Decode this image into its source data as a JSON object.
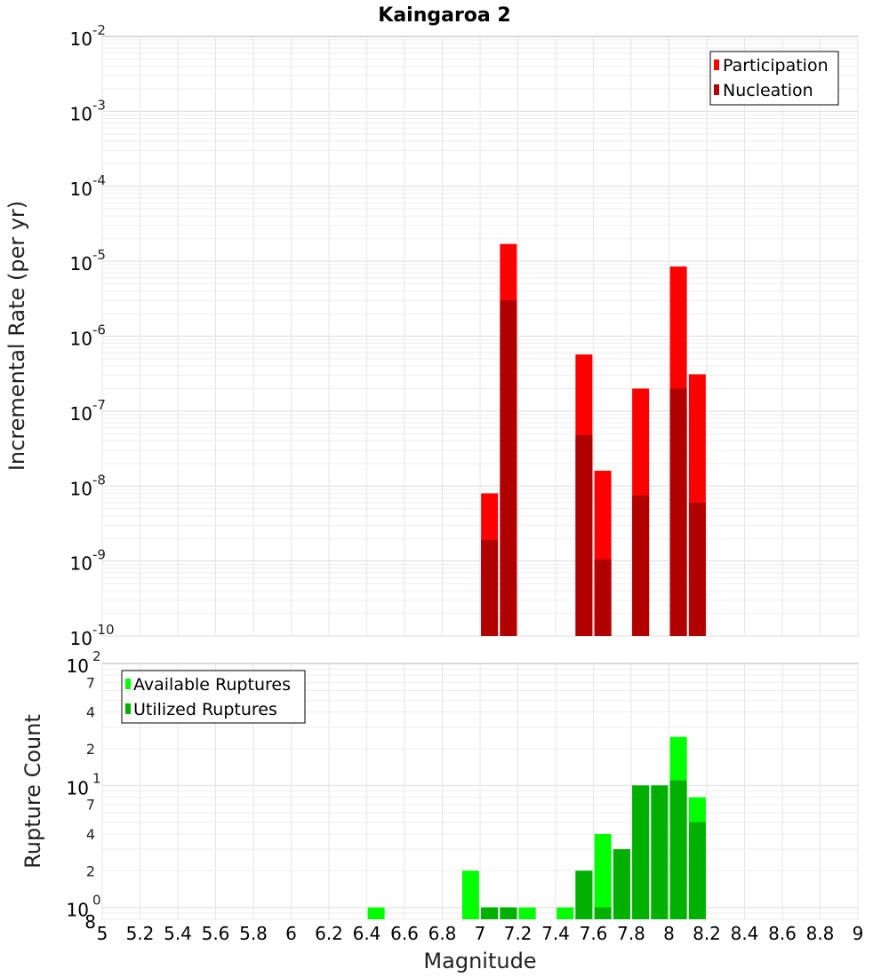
{
  "chart_data": [
    {
      "type": "bar",
      "title": "Kaingaroa 2",
      "ylabel": "Incremental Rate (per yr)",
      "xlabel": "",
      "yscale": "log",
      "ylim": [
        1e-10,
        0.01
      ],
      "xlim": [
        5,
        9
      ],
      "grid": true,
      "legend_position": "top-right",
      "y_ticks": [
        {
          "base": "10",
          "exp": "-2"
        },
        {
          "base": "10",
          "exp": "-3"
        },
        {
          "base": "10",
          "exp": "-4"
        },
        {
          "base": "10",
          "exp": "-5"
        },
        {
          "base": "10",
          "exp": "-6"
        },
        {
          "base": "10",
          "exp": "-7"
        },
        {
          "base": "10",
          "exp": "-8"
        },
        {
          "base": "10",
          "exp": "-9"
        },
        {
          "base": "10",
          "exp": "-10"
        }
      ],
      "x": [
        7.05,
        7.15,
        7.55,
        7.65,
        7.85,
        8.05,
        8.15
      ],
      "series": [
        {
          "name": "Participation",
          "color": "#ff0000",
          "values": [
            8e-09,
            1.7e-05,
            5.7e-07,
            1.6e-08,
            2e-07,
            8.5e-06,
            3.1e-07
          ]
        },
        {
          "name": "Nucleation",
          "color": "#b00000",
          "values": [
            1.9e-09,
            3e-06,
            4.8e-08,
            1.05e-09,
            7.5e-09,
            2e-07,
            6e-09
          ]
        }
      ]
    },
    {
      "type": "bar",
      "title": "",
      "ylabel": "Rupture Count",
      "xlabel": "Magnitude",
      "yscale": "log",
      "ylim": [
        0.8,
        100
      ],
      "xlim": [
        5,
        9
      ],
      "grid": true,
      "legend_position": "top-left",
      "y_major_ticks": [
        {
          "value": 100,
          "base": "10",
          "exp": "2"
        },
        {
          "value": 10,
          "base": "10",
          "exp": "1"
        },
        {
          "value": 1,
          "base": "10",
          "exp": "0"
        }
      ],
      "y_minor_ticks": [
        {
          "value": 70,
          "label": "7"
        },
        {
          "value": 40,
          "label": "4"
        },
        {
          "value": 20,
          "label": "2"
        },
        {
          "value": 7,
          "label": "7"
        },
        {
          "value": 4,
          "label": "4"
        },
        {
          "value": 2,
          "label": "2"
        },
        {
          "value": 0.8,
          "label": "8"
        }
      ],
      "x_ticks": [
        "5",
        "5.2",
        "5.4",
        "5.6",
        "5.8",
        "6",
        "6.2",
        "6.4",
        "6.6",
        "6.8",
        "7",
        "7.2",
        "7.4",
        "7.6",
        "7.8",
        "8",
        "8.2",
        "8.4",
        "8.6",
        "8.8",
        "9"
      ],
      "x": [
        6.45,
        6.95,
        7.05,
        7.15,
        7.25,
        7.45,
        7.55,
        7.65,
        7.75,
        7.85,
        7.95,
        8.05,
        8.15
      ],
      "series": [
        {
          "name": "Available Ruptures",
          "color": "#00ff00",
          "values": [
            1,
            2,
            1,
            1,
            1,
            1,
            2,
            4,
            3,
            10,
            10,
            25,
            8
          ]
        },
        {
          "name": "Utilized Ruptures",
          "color": "#00b000",
          "values": [
            0,
            0,
            1,
            1,
            0,
            0,
            2,
            1,
            3,
            10,
            10,
            11,
            5
          ]
        }
      ]
    }
  ]
}
